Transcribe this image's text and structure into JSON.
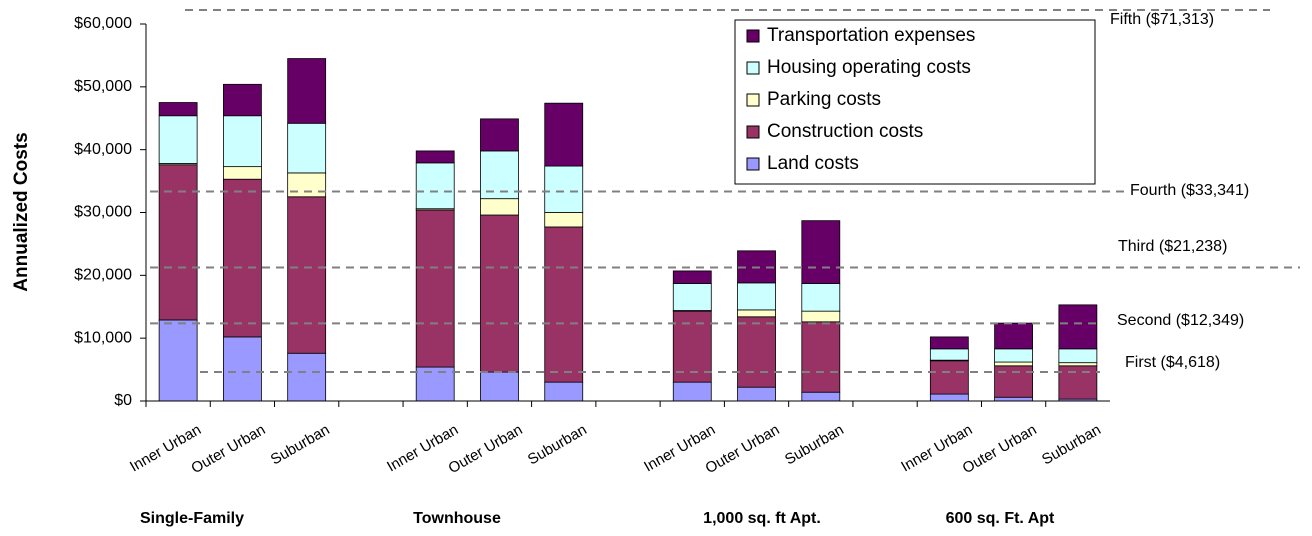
{
  "chart_data": {
    "type": "stacked-bar",
    "y_label": "Annualized Costs",
    "categories": [
      "Inner Urban",
      "Outer Urban",
      "Suburban",
      null,
      "Inner Urban",
      "Outer Urban",
      "Suburban",
      null,
      "Inner Urban",
      "Outer Urban",
      "Suburban",
      null,
      "Inner Urban",
      "Outer Urban",
      "Suburban"
    ],
    "groups": [
      "Single-Family",
      "Townhouse",
      "1,000 sq. ft Apt.",
      "600 sq. Ft.  Apt"
    ],
    "series": [
      {
        "name": "Land costs",
        "color": "#9999ff",
        "values": [
          12900,
          10200,
          7600,
          null,
          5400,
          4600,
          3000,
          null,
          3000,
          2200,
          1400,
          null,
          1100,
          600,
          300
        ]
      },
      {
        "name": "Construction costs",
        "color": "#993366",
        "values": [
          24700,
          25100,
          24900,
          null,
          25000,
          25000,
          24700,
          null,
          11300,
          11200,
          11200,
          null,
          5300,
          5000,
          5300
        ]
      },
      {
        "name": "Parking costs",
        "color": "#ffffcc",
        "values": [
          200,
          2000,
          3800,
          null,
          200,
          2600,
          2300,
          null,
          100,
          1100,
          1700,
          null,
          100,
          600,
          500
        ]
      },
      {
        "name": "Housing operating costs",
        "color": "#ccffff",
        "values": [
          7600,
          8100,
          7900,
          null,
          7300,
          7600,
          7400,
          null,
          4300,
          4300,
          4400,
          null,
          1800,
          2100,
          2200
        ]
      },
      {
        "name": "Transportation expenses",
        "color": "#660066",
        "values": [
          2100,
          5000,
          10300,
          null,
          1900,
          5100,
          10000,
          null,
          2000,
          5100,
          10000,
          null,
          1900,
          4100,
          7000
        ]
      }
    ],
    "ylim": [
      0,
      60000
    ],
    "yticks": [
      {
        "value": 0,
        "label": "$0"
      },
      {
        "value": 10000,
        "label": "$10,000"
      },
      {
        "value": 20000,
        "label": "$20,000"
      },
      {
        "value": 30000,
        "label": "$30,000"
      },
      {
        "value": 40000,
        "label": "$40,000"
      },
      {
        "value": 50000,
        "label": "$50,000"
      },
      {
        "value": 60000,
        "label": "$60,000"
      }
    ],
    "reference_lines": [
      {
        "value": 71313,
        "label": "Fifth ($71,313)"
      },
      {
        "value": 33341,
        "label": "Fourth ($33,341)"
      },
      {
        "value": 21238,
        "label": "Third ($21,238)"
      },
      {
        "value": 12349,
        "label": "Second ($12,349)"
      },
      {
        "value": 4618,
        "label": "First ($4,618)"
      }
    ],
    "reference_color": "#808080",
    "legend": "top-right"
  }
}
